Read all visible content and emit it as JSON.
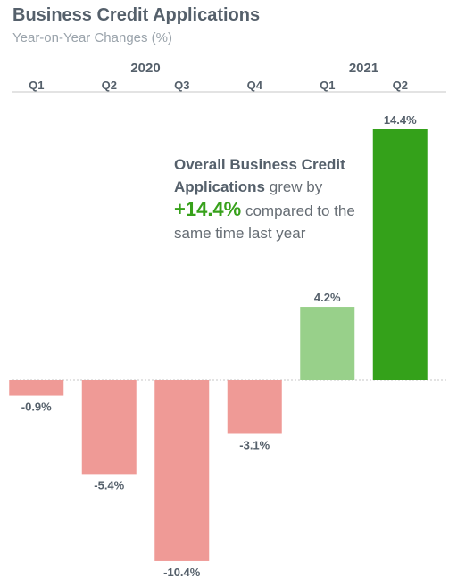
{
  "header": {
    "title": "Business Credit Applications",
    "subtitle": "Year-on-Year Changes (%)"
  },
  "annotation": {
    "bold_text": "Overall Business Credit Applications",
    "text_1": " grew by",
    "highlight": "+14.4%",
    "text_2": " compared to the same time last year"
  },
  "colors": {
    "negative": "#ef9a96",
    "positive_light": "#98d08a",
    "positive_dark": "#34a11a",
    "text_dark": "#55606b",
    "axis": "#c7c7c7"
  },
  "chart_data": {
    "type": "bar",
    "title": "Business Credit Applications",
    "subtitle": "Year-on-Year Changes (%)",
    "years": [
      {
        "label": "2020",
        "quarters": [
          "Q1",
          "Q2",
          "Q3",
          "Q4"
        ]
      },
      {
        "label": "2021",
        "quarters": [
          "Q1",
          "Q2"
        ]
      }
    ],
    "categories": [
      "Q1",
      "Q2",
      "Q3",
      "Q4",
      "Q1",
      "Q2"
    ],
    "values": [
      -0.9,
      -5.4,
      -10.4,
      -3.1,
      4.2,
      14.4
    ],
    "value_labels": [
      "-0.9%",
      "-5.4%",
      "-10.4%",
      "-3.1%",
      "4.2%",
      "14.4%"
    ],
    "bar_colors": [
      "#ef9a96",
      "#ef9a96",
      "#ef9a96",
      "#ef9a96",
      "#98d08a",
      "#34a11a"
    ],
    "ylim": [
      -10.4,
      14.4
    ],
    "xlabel": "",
    "ylabel": "",
    "grid": false,
    "legend": "none"
  }
}
